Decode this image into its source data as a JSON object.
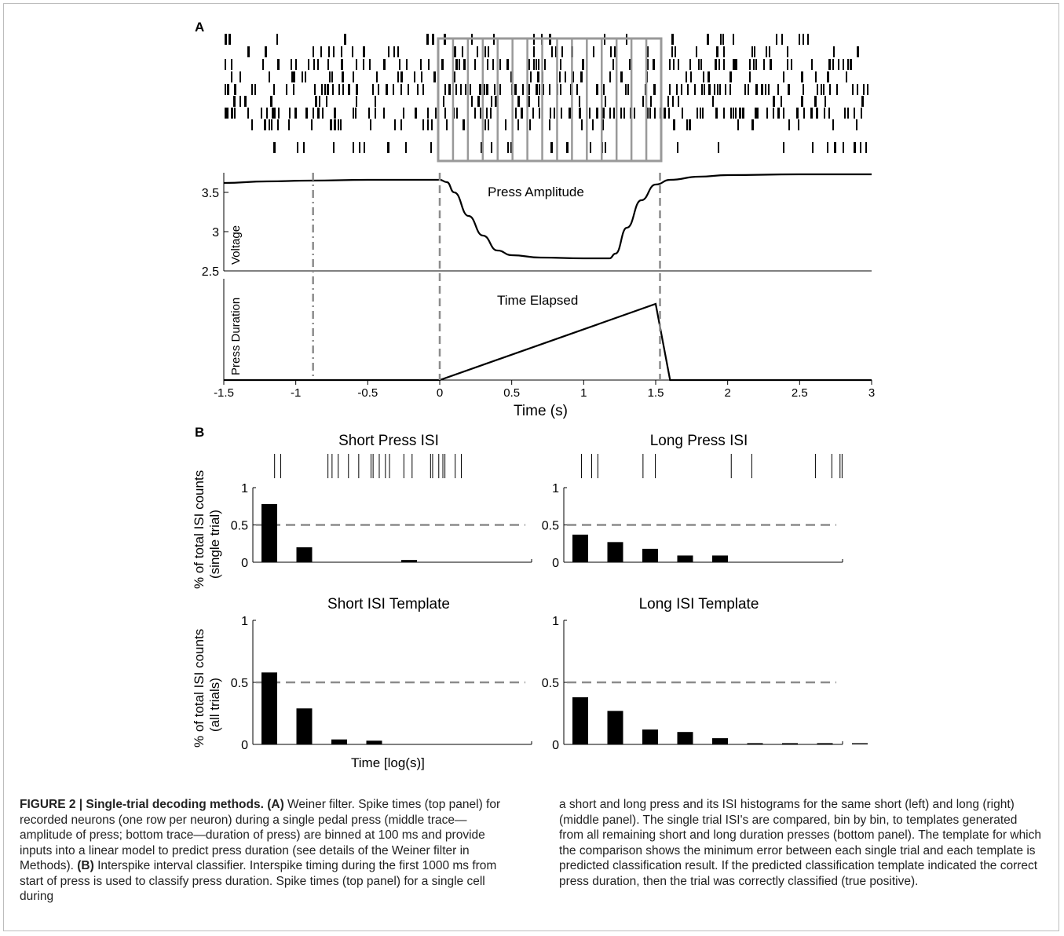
{
  "figure": {
    "panel_a_label": "A",
    "panel_b_label": "B",
    "voltage_ylabel": "Voltage",
    "duration_ylabel": "Press Duration",
    "press_amplitude_label": "Press Amplitude",
    "time_elapsed_label": "Time Elapsed",
    "time_xlabel": "Time (s)",
    "isi_ylabel_top_1": "% of total ISI counts",
    "isi_ylabel_top_2": "(single trial)",
    "isi_ylabel_bottom_1": "% of total ISI counts",
    "isi_ylabel_bottom_2": "(all trials)",
    "isi_xlabel": "Time [log(s)]",
    "colors": {
      "trace": "#000000",
      "grid_box": "#999999",
      "dashed": "#8c8c8c"
    }
  },
  "chart_data": [
    {
      "type": "raster",
      "rows": [
        [
          0.0,
          0.0,
          0.0,
          0.0,
          0.0,
          0.0,
          0.0,
          0.0,
          0.0,
          0.0,
          0.0,
          0.0,
          0.0,
          0.0,
          0.0
        ],
        [],
        [],
        [],
        [],
        [],
        [],
        [],
        []
      ],
      "bins_ms": 100,
      "highlight_window": [
        0,
        1.5
      ]
    },
    {
      "type": "line",
      "title": "Press Amplitude",
      "ylabel": "Voltage",
      "xlim": [
        -1.5,
        3
      ],
      "ylim": [
        2.5,
        3.75
      ],
      "xticks": [
        -1.5,
        -1,
        -0.5,
        0,
        0.5,
        1,
        1.5,
        2,
        2.5,
        3
      ],
      "yticks": [
        2.5,
        3,
        3.5
      ],
      "x": [
        -1.5,
        -1.2,
        -0.9,
        -0.5,
        0,
        0.05,
        0.1,
        0.2,
        0.3,
        0.4,
        0.5,
        0.7,
        1.0,
        1.18,
        1.22,
        1.3,
        1.4,
        1.5,
        1.6,
        1.8,
        2.0,
        2.5,
        3.0
      ],
      "y": [
        3.62,
        3.64,
        3.65,
        3.66,
        3.66,
        3.63,
        3.5,
        3.2,
        2.95,
        2.76,
        2.7,
        2.67,
        2.66,
        2.66,
        2.72,
        3.05,
        3.4,
        3.6,
        3.66,
        3.7,
        3.72,
        3.73,
        3.73
      ],
      "vlines": [
        {
          "x": -0.88,
          "style": "dashdot"
        },
        {
          "x": 0,
          "style": "dashed"
        },
        {
          "x": 1.53,
          "style": "dashed"
        }
      ]
    },
    {
      "type": "line",
      "title": "Time Elapsed",
      "ylabel": "Press Duration",
      "xlabel": "Time (s)",
      "xlim": [
        -1.5,
        3
      ],
      "x": [
        -1.5,
        0,
        1.5,
        1.6,
        3
      ],
      "y": [
        0,
        0,
        1.5,
        0,
        0
      ]
    },
    {
      "type": "bar",
      "title": "Short Press ISI",
      "ylabel": "% of total ISI counts (single trial)",
      "ylim": [
        0,
        1
      ],
      "yticks": [
        0,
        0.5,
        1
      ],
      "threshold": 0.5,
      "values": [
        0.78,
        0.2,
        0,
        0,
        0.03,
        0,
        0,
        0,
        0
      ],
      "spike_times": [
        0.03,
        0.045,
        0.16,
        0.17,
        0.185,
        0.21,
        0.235,
        0.265,
        0.27,
        0.285,
        0.3,
        0.31,
        0.345,
        0.365,
        0.41,
        0.415,
        0.43,
        0.44,
        0.445,
        0.47,
        0.485
      ]
    },
    {
      "type": "bar",
      "title": "Long Press ISI",
      "ylabel": "% of total ISI counts (single trial)",
      "ylim": [
        0,
        1
      ],
      "yticks": [
        0,
        0.5,
        1
      ],
      "threshold": 0.5,
      "values": [
        0.37,
        0.27,
        0.18,
        0.09,
        0.09,
        0,
        0,
        0,
        0
      ],
      "spike_times": [
        0.02,
        0.045,
        0.06,
        0.17,
        0.2,
        0.385,
        0.435,
        0.59,
        0.63,
        0.65,
        0.655
      ]
    },
    {
      "type": "bar",
      "title": "Short ISI Template",
      "ylabel": "% of total ISI counts (all trials)",
      "xlabel": "Time [log(s)]",
      "ylim": [
        0,
        1
      ],
      "yticks": [
        0,
        0.5,
        1
      ],
      "threshold": 0.5,
      "values": [
        0.58,
        0.29,
        0.04,
        0.03,
        0,
        0,
        0,
        0,
        0
      ]
    },
    {
      "type": "bar",
      "title": "Long ISI Template",
      "ylabel": "% of total ISI counts (all trials)",
      "ylim": [
        0,
        1
      ],
      "yticks": [
        0,
        0.5,
        1
      ],
      "threshold": 0.5,
      "values": [
        0.38,
        0.27,
        0.12,
        0.1,
        0.05,
        0.01,
        0.01,
        0.01,
        0.005
      ]
    }
  ],
  "caption": {
    "left_title": "FIGURE 2 | Single-trial decoding methods. (A)",
    "left_part1": " Weiner filter. Spike times (top panel) for recorded neurons (one row per neuron) during a single pedal press (middle trace—amplitude of press; bottom trace—duration of press) are binned at 100 ms and provide inputs into a linear model to predict press duration (see details of the Weiner filter in Methods). ",
    "left_bold_b": "(B)",
    "left_part2": " Interspike interval classifier. Interspike timing during the first 1000 ms from start of press is used to classify press duration. Spike times (top panel) for a single cell during",
    "right": "a short and long press and its ISI histograms for the same short (left) and long (right) (middle panel). The single trial ISI's are compared, bin by bin, to templates generated from all remaining short and long duration presses (bottom panel). The template for which the comparison shows the minimum error between each single trial and each template is predicted classification result. If the predicted classification template indicated the correct press duration, then the trial was correctly classified (true positive)."
  }
}
